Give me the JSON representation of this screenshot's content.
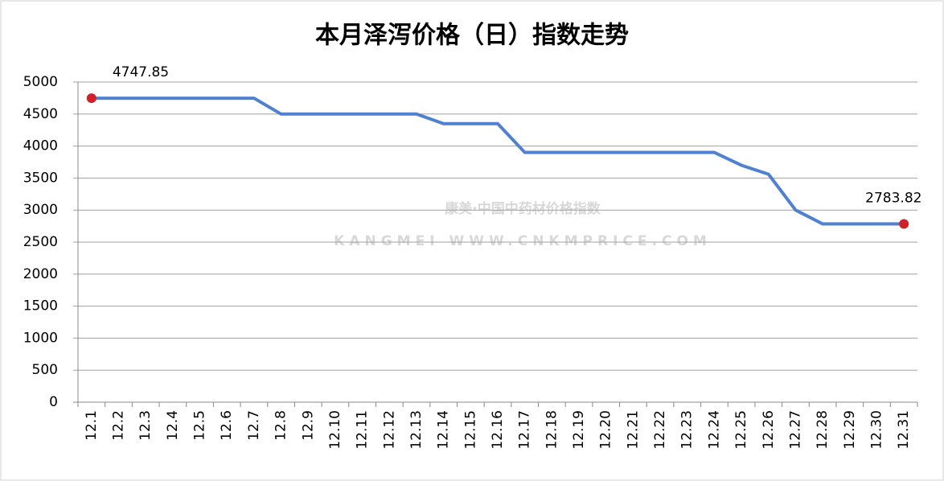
{
  "chart_data": {
    "type": "line",
    "title": "本月泽泻价格（日）指数走势",
    "watermark": [
      "康美·中国中药材价格指数",
      "KANGMEI  WWW.CNKMPRICE.COM"
    ],
    "categories": [
      "12.1",
      "12.2",
      "12.3",
      "12.4",
      "12.5",
      "12.6",
      "12.7",
      "12.8",
      "12.9",
      "12.10",
      "12.11",
      "12.12",
      "12.13",
      "12.14",
      "12.15",
      "12.16",
      "12.17",
      "12.18",
      "12.19",
      "12.20",
      "12.21",
      "12.22",
      "12.23",
      "12.24",
      "12.25",
      "12.26",
      "12.27",
      "12.28",
      "12.29",
      "12.30",
      "12.31"
    ],
    "values": [
      4747.85,
      4747.85,
      4747.85,
      4747.85,
      4747.85,
      4747.85,
      4747.85,
      4500,
      4500,
      4500,
      4500,
      4500,
      4500,
      4350,
      4350,
      4350,
      3900,
      3900,
      3900,
      3900,
      3900,
      3900,
      3900,
      3900,
      3700,
      3560,
      3000,
      2783.82,
      2783.82,
      2783.82,
      2783.82
    ],
    "color": "#4f81d0",
    "marker_color": "#d0202a",
    "ylim": [
      0,
      5000
    ],
    "yticks": [
      0,
      500,
      1000,
      1500,
      2000,
      2500,
      3000,
      3500,
      4000,
      4500,
      5000
    ],
    "grid": true
  }
}
